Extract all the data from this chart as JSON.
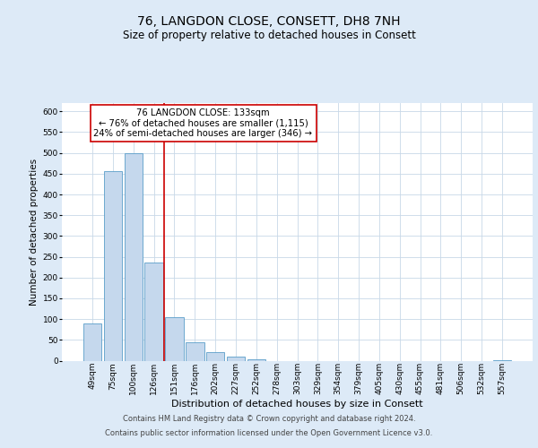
{
  "title": "76, LANGDON CLOSE, CONSETT, DH8 7NH",
  "subtitle": "Size of property relative to detached houses in Consett",
  "xlabel": "Distribution of detached houses by size in Consett",
  "ylabel": "Number of detached properties",
  "bar_labels": [
    "49sqm",
    "75sqm",
    "100sqm",
    "126sqm",
    "151sqm",
    "176sqm",
    "202sqm",
    "227sqm",
    "252sqm",
    "278sqm",
    "303sqm",
    "329sqm",
    "354sqm",
    "379sqm",
    "405sqm",
    "430sqm",
    "455sqm",
    "481sqm",
    "506sqm",
    "532sqm",
    "557sqm"
  ],
  "bar_values": [
    90,
    457,
    500,
    237,
    105,
    45,
    20,
    10,
    3,
    0,
    0,
    0,
    0,
    0,
    0,
    0,
    0,
    0,
    0,
    0,
    2
  ],
  "bar_color": "#c5d8ed",
  "bar_edge_color": "#5a9ec9",
  "vline_color": "#cc0000",
  "vline_pos": 3.5,
  "annotation_box_text": "76 LANGDON CLOSE: 133sqm\n← 76% of detached houses are smaller (1,115)\n24% of semi-detached houses are larger (346) →",
  "annotation_box_color": "#ffffff",
  "annotation_box_edge_color": "#cc0000",
  "ylim": [
    0,
    620
  ],
  "yticks": [
    0,
    50,
    100,
    150,
    200,
    250,
    300,
    350,
    400,
    450,
    500,
    550,
    600
  ],
  "grid_color": "#c8d8e8",
  "bg_color": "#ddeaf7",
  "plot_bg_color": "#ffffff",
  "footer_line1": "Contains HM Land Registry data © Crown copyright and database right 2024.",
  "footer_line2": "Contains public sector information licensed under the Open Government Licence v3.0.",
  "title_fontsize": 10,
  "subtitle_fontsize": 8.5,
  "xlabel_fontsize": 8,
  "ylabel_fontsize": 7.5,
  "tick_fontsize": 6.5,
  "annot_fontsize": 7.2,
  "footer_fontsize": 6
}
